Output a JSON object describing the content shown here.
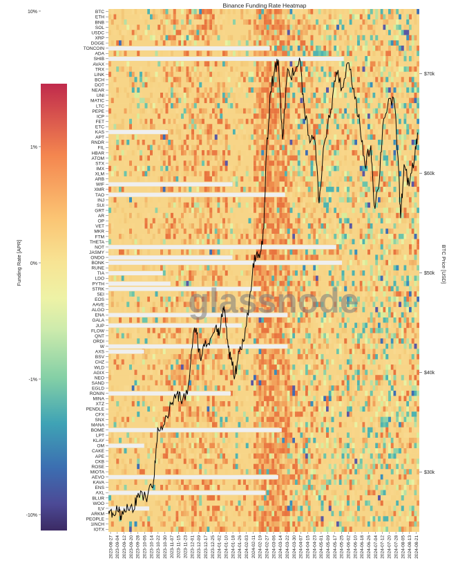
{
  "chart_data": {
    "type": "heatmap",
    "title": "Binance Funding Rate Heatmap",
    "watermark": "glassnode",
    "colorbar": {
      "label": "Funding Rate [APR]",
      "ticks": [
        "10%",
        "1%",
        "0%",
        "-1%",
        "-10%"
      ],
      "tick_values": [
        0.1,
        0.01,
        0,
        -0.01,
        -0.1
      ],
      "scale": "symlog",
      "colormap": "Spectral_r"
    },
    "right_axis": {
      "label": "BTC Price [USD]",
      "ticks": [
        "$70k",
        "$60k",
        "$50k",
        "$40k",
        "$30k"
      ],
      "tick_values": [
        70000,
        60000,
        50000,
        40000,
        30000
      ],
      "ylim": [
        24000,
        76500
      ]
    },
    "assets": [
      "BTC",
      "ETH",
      "BNB",
      "SOL",
      "USDC",
      "XRP",
      "DOGE",
      "TONCOIN",
      "ADA",
      "SHIB",
      "AVAX",
      "TRX",
      "LINK",
      "BCH",
      "DOT",
      "NEAR",
      "UNI",
      "MATIC",
      "LTC",
      "PEPE",
      "ICP",
      "FET",
      "ETC",
      "KAS",
      "APT",
      "RNDR",
      "FIL",
      "HBAR",
      "ATOM",
      "STX",
      "IMX",
      "XLM",
      "ARB",
      "WIF",
      "XMR",
      "TAO",
      "INJ",
      "SUI",
      "GRT",
      "AR",
      "OP",
      "VET",
      "MKR",
      "FTM",
      "THETA",
      "NOT",
      "JASMY",
      "ONDO",
      "BONK",
      "RUNE",
      "TIA",
      "LDO",
      "PYTH",
      "STRK",
      "SEI",
      "EOS",
      "AAVE",
      "ALGO",
      "ENA",
      "GALA",
      "JUP",
      "FLOW",
      "QNT",
      "ORDI",
      "W",
      "AXS",
      "BSV",
      "CHZ",
      "WLD",
      "AGIX",
      "NEO",
      "SAND",
      "EGLD",
      "RONIN",
      "MINA",
      "XTZ",
      "PENDLE",
      "CFX",
      "SNX",
      "MANA",
      "BOME",
      "LPT",
      "KLAY",
      "OM",
      "CAKE",
      "APE",
      "CKB",
      "ROSE",
      "MIOTA",
      "AEVO",
      "KAVA",
      "ENS",
      "AXL",
      "BLUR",
      "WOO",
      "ILV",
      "ARKM",
      "PEOPLE",
      "1INCH",
      "IOTX"
    ],
    "dates": [
      "2023-08-27",
      "2023-09-04",
      "2023-09-12",
      "2023-09-20",
      "2023-09-28",
      "2023-10-06",
      "2023-10-14",
      "2023-10-22",
      "2023-10-30",
      "2023-11-07",
      "2023-11-15",
      "2023-11-23",
      "2023-12-01",
      "2023-12-09",
      "2023-12-17",
      "2023-12-25",
      "2024-01-02",
      "2024-01-10",
      "2024-01-18",
      "2024-01-26",
      "2024-02-03",
      "2024-02-11",
      "2024-02-19",
      "2024-02-27",
      "2024-03-06",
      "2024-03-14",
      "2024-03-22",
      "2024-03-30",
      "2024-04-07",
      "2024-04-15",
      "2024-04-23",
      "2024-05-01",
      "2024-05-09",
      "2024-05-17",
      "2024-05-25",
      "2024-06-02",
      "2024-06-10",
      "2024-06-18",
      "2024-06-26",
      "2024-07-04",
      "2024-07-12",
      "2024-07-20",
      "2024-07-28",
      "2024-08-05",
      "2024-08-13",
      "2024-08-21"
    ],
    "listing_dates": {
      "TONCOIN": "2024-03-04",
      "SHIB": "2024-05-30",
      "KAS": "2023-11-05",
      "WIF": "2024-01-20",
      "TAO": "2024-03-22",
      "NOT": "2024-05-21",
      "ONDO": "2024-01-20",
      "BONK": "2024-05-28",
      "TIA": "2023-10-30",
      "PYTH": "2023-11-08",
      "STRK": "2024-02-22",
      "ENA": "2024-03-25",
      "JUP": "2024-01-31",
      "W": "2024-03-25",
      "AXS": "2023-10-08",
      "RONIN": "2024-01-18",
      "BOME": "2024-03-18",
      "KLAY": "2023-08-27",
      "OM": "2023-10-08",
      "AEVO": "2024-03-14",
      "AXL": "2024-02-28",
      "BLUR": "2023-08-27",
      "ILV": "2023-10-14",
      "ARKM": "2023-08-27"
    },
    "btc_price": {
      "x": [
        "2023-08-27",
        "2023-09-01",
        "2023-09-08",
        "2023-09-11",
        "2023-09-18",
        "2023-09-26",
        "2023-10-01",
        "2023-10-10",
        "2023-10-17",
        "2023-10-20",
        "2023-10-24",
        "2023-11-01",
        "2023-11-09",
        "2023-11-15",
        "2023-11-20",
        "2023-11-28",
        "2023-12-05",
        "2023-12-09",
        "2023-12-13",
        "2023-12-18",
        "2023-12-25",
        "2024-01-01",
        "2024-01-05",
        "2024-01-09",
        "2024-01-11",
        "2024-01-15",
        "2024-01-18",
        "2024-01-23",
        "2024-01-28",
        "2024-02-03",
        "2024-02-10",
        "2024-02-15",
        "2024-02-21",
        "2024-02-26",
        "2024-02-29",
        "2024-03-05",
        "2024-03-09",
        "2024-03-14",
        "2024-03-19",
        "2024-03-25",
        "2024-04-01",
        "2024-04-08",
        "2024-04-13",
        "2024-04-19",
        "2024-04-26",
        "2024-05-01",
        "2024-05-07",
        "2024-05-15",
        "2024-05-21",
        "2024-05-28",
        "2024-06-05",
        "2024-06-12",
        "2024-06-18",
        "2024-06-24",
        "2024-07-01",
        "2024-07-05",
        "2024-07-10",
        "2024-07-15",
        "2024-07-22",
        "2024-07-29",
        "2024-08-02",
        "2024-08-05",
        "2024-08-09",
        "2024-08-15",
        "2024-08-21",
        "2024-08-25"
      ],
      "y": [
        26100,
        25900,
        26000,
        25200,
        26800,
        26200,
        27900,
        27400,
        28500,
        29600,
        34500,
        34800,
        36800,
        37800,
        37300,
        37800,
        44000,
        43900,
        41500,
        42600,
        43400,
        44800,
        44000,
        46500,
        46200,
        42500,
        41300,
        39700,
        42100,
        43200,
        48100,
        51800,
        51500,
        54500,
        62000,
        68200,
        70000,
        71400,
        63400,
        70500,
        69800,
        71600,
        67100,
        63800,
        63300,
        57000,
        63000,
        66400,
        70200,
        68600,
        71100,
        67500,
        65000,
        60800,
        62800,
        56800,
        58500,
        64800,
        67500,
        66800,
        61500,
        55500,
        60900,
        58700,
        61200,
        64100
      ]
    },
    "btc_line_color": "#000000",
    "missing_color": "#efefef"
  }
}
